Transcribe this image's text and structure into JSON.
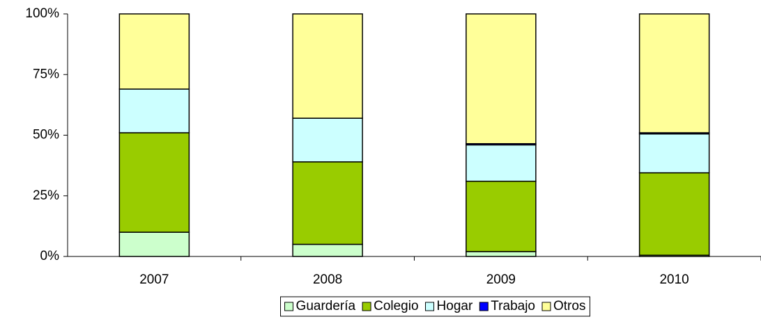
{
  "chart_data": {
    "type": "stacked_bar",
    "categories": [
      "2007",
      "2008",
      "2009",
      "2010"
    ],
    "series": [
      {
        "name": "Guardería",
        "color": "#ccffcc",
        "values": [
          10,
          5,
          2,
          0.5
        ]
      },
      {
        "name": "Colegio",
        "color": "#99cc00",
        "values": [
          41,
          34,
          29,
          34
        ]
      },
      {
        "name": "Hogar",
        "color": "#ccffff",
        "values": [
          18,
          18,
          15,
          16
        ]
      },
      {
        "name": "Trabajo",
        "color": "#0000ff",
        "values": [
          0,
          0,
          0.5,
          0.5
        ]
      },
      {
        "name": "Otros",
        "color": "#ffff99",
        "values": [
          31,
          43,
          53.5,
          49
        ]
      }
    ],
    "ylim": [
      0,
      100
    ],
    "yticks": [
      {
        "value": 0,
        "label": "0%"
      },
      {
        "value": 25,
        "label": "25%"
      },
      {
        "value": 50,
        "label": "50%"
      },
      {
        "value": 75,
        "label": "75%"
      },
      {
        "value": 100,
        "label": "100%"
      }
    ],
    "grid": false,
    "legend": "bottom"
  }
}
